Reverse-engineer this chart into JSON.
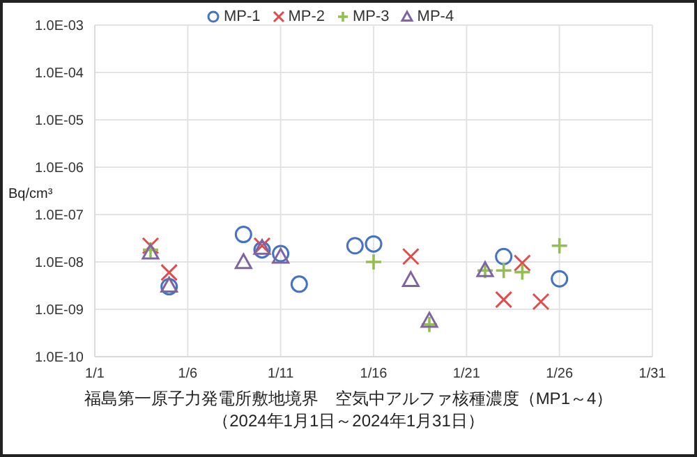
{
  "chart_data": {
    "type": "scatter",
    "title": "福島第一原子力発電所敷地境界　空気中アルファ核種濃度（MP1～4）",
    "subtitle": "（2024年1月1日～2024年1月31日）",
    "ylabel": "Bq/cm³",
    "log": "y",
    "grid": true,
    "legend": "top",
    "xlim": [
      "2024-01-01",
      "2024-01-31"
    ],
    "xticks": [
      {
        "value": "2024-01-01",
        "label": "1/1"
      },
      {
        "value": "2024-01-06",
        "label": "1/6"
      },
      {
        "value": "2024-01-11",
        "label": "1/11"
      },
      {
        "value": "2024-01-16",
        "label": "1/16"
      },
      {
        "value": "2024-01-21",
        "label": "1/21"
      },
      {
        "value": "2024-01-26",
        "label": "1/26"
      },
      {
        "value": "2024-01-31",
        "label": "1/31"
      }
    ],
    "ylim": [
      1e-10,
      0.001
    ],
    "yticks": [
      {
        "value": 1e-10,
        "label": "1.0E-10"
      },
      {
        "value": 1e-09,
        "label": "1.0E-09"
      },
      {
        "value": 1e-08,
        "label": "1.0E-08"
      },
      {
        "value": 1e-07,
        "label": "1.0E-07"
      },
      {
        "value": 1e-06,
        "label": "1.0E-06"
      },
      {
        "value": 1e-05,
        "label": "1.0E-05"
      },
      {
        "value": 0.0001,
        "label": "1.0E-04"
      },
      {
        "value": 0.001,
        "label": "1.0E-03"
      }
    ],
    "series": [
      {
        "name": "MP-1",
        "color": "#4472c4",
        "marker": "circle",
        "x": [
          "2024-01-05",
          "2024-01-09",
          "2024-01-10",
          "2024-01-11",
          "2024-01-12",
          "2024-01-15",
          "2024-01-16",
          "2024-01-23",
          "2024-01-26"
        ],
        "values": [
          3e-09,
          3.8e-08,
          1.8e-08,
          1.5e-08,
          3.4e-09,
          2.2e-08,
          2.4e-08,
          1.3e-08,
          4.4e-09
        ]
      },
      {
        "name": "MP-2",
        "color": "#e04b4b",
        "marker": "cross",
        "x": [
          "2024-01-04",
          "2024-01-05",
          "2024-01-10",
          "2024-01-18",
          "2024-01-23",
          "2024-01-24",
          "2024-01-25"
        ],
        "values": [
          2.2e-08,
          6e-09,
          2.2e-08,
          1.3e-08,
          1.6e-09,
          9.5e-09,
          1.45e-09
        ]
      },
      {
        "name": "MP-3",
        "color": "#92c050",
        "marker": "plus",
        "x": [
          "2024-01-04",
          "2024-01-16",
          "2024-01-19",
          "2024-01-22",
          "2024-01-23",
          "2024-01-24",
          "2024-01-26"
        ],
        "values": [
          1.8e-08,
          1e-08,
          4.8e-10,
          6.6e-09,
          6.6e-09,
          6.1e-09,
          2.2e-08
        ]
      },
      {
        "name": "MP-4",
        "color": "#8064a2",
        "marker": "triangle",
        "x": [
          "2024-01-04",
          "2024-01-05",
          "2024-01-09",
          "2024-01-10",
          "2024-01-11",
          "2024-01-18",
          "2024-01-19",
          "2024-01-22"
        ],
        "values": [
          1.6e-08,
          3.2e-09,
          1e-08,
          2e-08,
          1.3e-08,
          4.2e-09,
          5.8e-10,
          6.8e-09
        ]
      }
    ]
  }
}
